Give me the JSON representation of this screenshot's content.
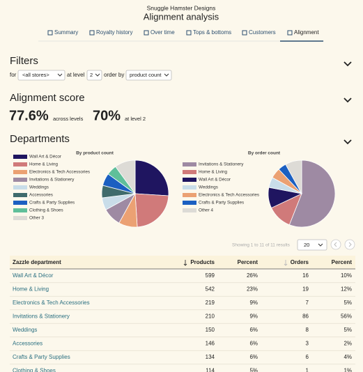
{
  "header": {
    "brand": "Snuggle Hamster Designs",
    "title": "Alignment analysis"
  },
  "tabs": [
    "Summary",
    "Royalty history",
    "Over time",
    "Tops & bottoms",
    "Customers",
    "Alignment"
  ],
  "active_tab": 5,
  "filters": {
    "title": "Filters",
    "for_label": "for",
    "store": "<all stores>",
    "level_label": "at level",
    "level": "2",
    "order_label": "order by",
    "order": "product count"
  },
  "score": {
    "title": "Alignment score",
    "overall": "77.6%",
    "overall_label": "across levels",
    "level": "70%",
    "level_label": "at level 2"
  },
  "departments": {
    "title": "Departments"
  },
  "chart_data": [
    {
      "type": "pie",
      "title": "By product count",
      "categories": [
        "Wall Art & Décor",
        "Home & Living",
        "Electronics & Tech Accessories",
        "Invitations & Stationery",
        "Weddings",
        "Accessories",
        "Crafts & Party Supplies",
        "Clothing & Shoes",
        "Other 3"
      ],
      "values": [
        26,
        23,
        9,
        9,
        6,
        6,
        6,
        5,
        10
      ],
      "colors": [
        "#1f1560",
        "#d07a7a",
        "#eba173",
        "#9e8aa3",
        "#c9dde9",
        "#3f6b6c",
        "#1b5fc1",
        "#5fbf9a",
        "#dddbd6"
      ]
    },
    {
      "type": "pie",
      "title": "By order count",
      "categories": [
        "Invitations & Stationery",
        "Home & Living",
        "Wall Art & Décor",
        "Weddings",
        "Electronics & Tech Accessories",
        "Crafts & Party Supplies",
        "Other 4"
      ],
      "values": [
        56,
        12,
        10,
        5,
        5,
        4,
        8
      ],
      "colors": [
        "#9e8aa3",
        "#d07a7a",
        "#1f1560",
        "#c9dde9",
        "#eba173",
        "#1b5fc1",
        "#dddbd6"
      ]
    }
  ],
  "pagination": {
    "info": "Showing 1 to 11 of 11 results",
    "page_size": "20"
  },
  "table": {
    "columns": [
      "Zazzle department",
      "Products",
      "Percent",
      "Orders",
      "Percent"
    ],
    "rows": [
      [
        "Wall Art & Décor",
        "599",
        "26%",
        "16",
        "10%"
      ],
      [
        "Home & Living",
        "542",
        "23%",
        "19",
        "12%"
      ],
      [
        "Electronics & Tech Accessories",
        "219",
        "9%",
        "7",
        "5%"
      ],
      [
        "Invitations & Stationery",
        "210",
        "9%",
        "86",
        "56%"
      ],
      [
        "Weddings",
        "150",
        "6%",
        "8",
        "5%"
      ],
      [
        "Accessories",
        "146",
        "6%",
        "3",
        "2%"
      ],
      [
        "Crafts & Party Supplies",
        "134",
        "6%",
        "6",
        "4%"
      ],
      [
        "Clothing & Shoes",
        "114",
        "5%",
        "1",
        "1%"
      ]
    ]
  }
}
